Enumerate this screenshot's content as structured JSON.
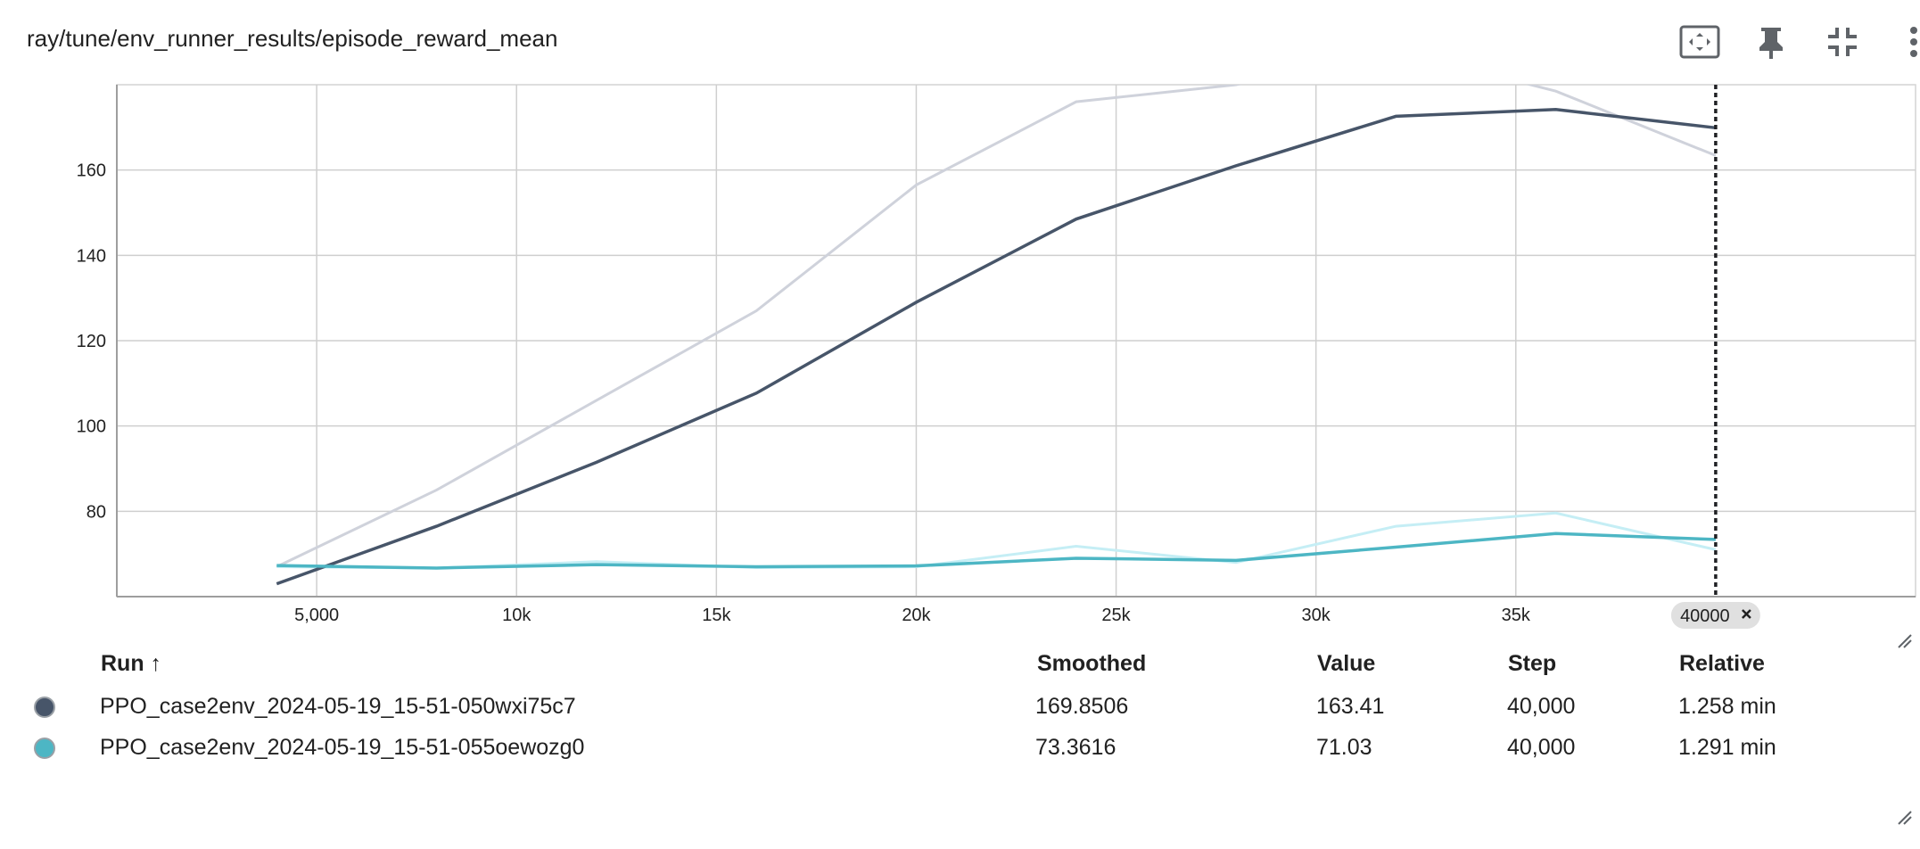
{
  "header": {
    "title": "ray/tune/env_runner_results/episode_reward_mean",
    "icons": [
      "fit-domain-icon",
      "pin-icon",
      "collapse-icon",
      "more-vert-icon"
    ]
  },
  "chart_data": {
    "type": "line",
    "title": "ray/tune/env_runner_results/episode_reward_mean",
    "xlim": [
      0,
      45000
    ],
    "ylim": [
      60,
      180
    ],
    "x_ticks": [
      5000,
      10000,
      15000,
      20000,
      25000,
      30000,
      35000
    ],
    "x_tick_labels": [
      "5,000",
      "10k",
      "15k",
      "20k",
      "25k",
      "30k",
      "35k"
    ],
    "y_ticks": [
      80,
      100,
      120,
      140,
      160
    ],
    "y_tick_labels": [
      "80",
      "100",
      "120",
      "140",
      "160"
    ],
    "grid": true,
    "cursor": {
      "x": 40000,
      "label": "40000"
    },
    "series": [
      {
        "name": "PPO_case2env_2024-05-19_15-51-050wxi75c7",
        "color": "#475569",
        "raw_color": "#cfd2db",
        "x": [
          4000,
          8000,
          12000,
          16000,
          20000,
          24000,
          28000,
          32000,
          36000,
          40000
        ],
        "raw": [
          67,
          85,
          106,
          127,
          156.5,
          176,
          180,
          188,
          178.5,
          163.4
        ],
        "smoothed": [
          63,
          76.5,
          91.5,
          107.7,
          129,
          148.5,
          161,
          172.6,
          174.2,
          169.9
        ]
      },
      {
        "name": "PPO_case2env_2024-05-19_15-51-055oewozg0",
        "color": "#4db6c4",
        "raw_color": "#c5eef5",
        "x": [
          4000,
          8000,
          12000,
          16000,
          20000,
          24000,
          28000,
          32000,
          36000,
          40000
        ],
        "raw": [
          67,
          66.7,
          68.2,
          66.8,
          67,
          71.8,
          68,
          76.5,
          79.6,
          71
        ],
        "smoothed": [
          67.3,
          66.7,
          67.5,
          67,
          67.2,
          69,
          68.5,
          71.6,
          74.8,
          73.4
        ]
      }
    ]
  },
  "table": {
    "headers": {
      "run": "Run ↑",
      "smoothed": "Smoothed",
      "value": "Value",
      "step": "Step",
      "relative": "Relative"
    },
    "rows": [
      {
        "color": "#475569",
        "run": "PPO_case2env_2024-05-19_15-51-050wxi75c7",
        "smoothed": "169.8506",
        "value": "163.41",
        "step": "40,000",
        "relative": "1.258 min"
      },
      {
        "color": "#4db6c4",
        "run": "PPO_case2env_2024-05-19_15-51-055oewozg0",
        "smoothed": "73.3616",
        "value": "71.03",
        "step": "40,000",
        "relative": "1.291 min"
      }
    ]
  }
}
